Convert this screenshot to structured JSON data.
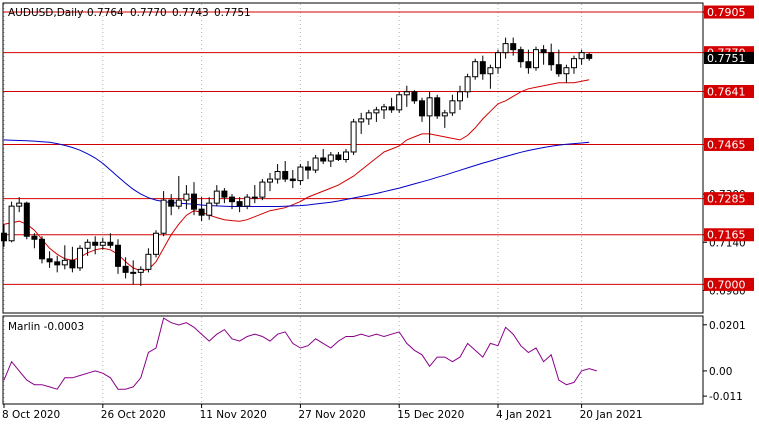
{
  "header": {
    "symbol_label": "AUDUSD,Daily",
    "ohlc": [
      "0.7764",
      "0.7770",
      "0.7743",
      "0.7751"
    ]
  },
  "current_price_label": "0.7751",
  "chart_data": [
    {
      "type": "candlestick",
      "symbol": "AUDUSD",
      "timeframe": "Daily",
      "ylim": [
        0.6905,
        0.7935
      ],
      "price_ticks": [
        "0.7905",
        "0.7770",
        "0.7641",
        "0.7465",
        "0.7300",
        "0.7285",
        "0.7165",
        "0.7140",
        "0.7000",
        "0.6980"
      ],
      "x_ticks": [
        "8 Oct 2020",
        "26 Oct 2020",
        "11 Nov 2020",
        "27 Nov 2020",
        "15 Dec 2020",
        "4 Jan 2021",
        "20 Jan 2021"
      ],
      "levels": [
        {
          "value": 0.7905,
          "label": "0.7905",
          "color": "#d40000"
        },
        {
          "value": 0.777,
          "label": "0.7770",
          "color": "#d40000"
        },
        {
          "value": 0.7641,
          "label": "0.7641",
          "color": "#d40000"
        },
        {
          "value": 0.7465,
          "label": "0.7465",
          "color": "#d40000"
        },
        {
          "value": 0.7285,
          "label": "0.7285",
          "color": "#d40000"
        },
        {
          "value": 0.7165,
          "label": "0.7165",
          "color": "#d40000"
        },
        {
          "value": 0.7,
          "label": "0.7000",
          "color": "#d40000"
        }
      ],
      "candles": [
        [
          0.717,
          0.72,
          0.7125,
          0.7145
        ],
        [
          0.7145,
          0.7275,
          0.714,
          0.726
        ],
        [
          0.726,
          0.729,
          0.724,
          0.727
        ],
        [
          0.727,
          0.7275,
          0.715,
          0.716
        ],
        [
          0.716,
          0.717,
          0.712,
          0.715
        ],
        [
          0.715,
          0.716,
          0.707,
          0.7085
        ],
        [
          0.7085,
          0.711,
          0.7055,
          0.7075
        ],
        [
          0.7075,
          0.7095,
          0.704,
          0.7065
        ],
        [
          0.7065,
          0.713,
          0.705,
          0.708
        ],
        [
          0.708,
          0.7125,
          0.704,
          0.7055
        ],
        [
          0.7055,
          0.713,
          0.7045,
          0.712
        ],
        [
          0.712,
          0.715,
          0.7095,
          0.714
        ],
        [
          0.714,
          0.716,
          0.71,
          0.713
        ],
        [
          0.713,
          0.7155,
          0.7115,
          0.714
        ],
        [
          0.714,
          0.717,
          0.712,
          0.713
        ],
        [
          0.713,
          0.715,
          0.7035,
          0.706
        ],
        [
          0.706,
          0.709,
          0.702,
          0.704
        ],
        [
          0.704,
          0.708,
          0.7,
          0.704
        ],
        [
          0.704,
          0.706,
          0.6995,
          0.705
        ],
        [
          0.705,
          0.712,
          0.704,
          0.71
        ],
        [
          0.71,
          0.718,
          0.709,
          0.717
        ],
        [
          0.717,
          0.731,
          0.716,
          0.728
        ],
        [
          0.728,
          0.73,
          0.723,
          0.726
        ],
        [
          0.726,
          0.736,
          0.725,
          0.728
        ],
        [
          0.728,
          0.733,
          0.725,
          0.73
        ],
        [
          0.73,
          0.734,
          0.723,
          0.725
        ],
        [
          0.725,
          0.729,
          0.721,
          0.723
        ],
        [
          0.723,
          0.729,
          0.7215,
          0.727
        ],
        [
          0.727,
          0.733,
          0.726,
          0.731
        ],
        [
          0.731,
          0.732,
          0.727,
          0.729
        ],
        [
          0.729,
          0.73,
          0.725,
          0.7275
        ],
        [
          0.7275,
          0.729,
          0.724,
          0.726
        ],
        [
          0.726,
          0.73,
          0.725,
          0.729
        ],
        [
          0.729,
          0.733,
          0.727,
          0.729
        ],
        [
          0.729,
          0.735,
          0.728,
          0.734
        ],
        [
          0.734,
          0.737,
          0.731,
          0.735
        ],
        [
          0.735,
          0.74,
          0.7335,
          0.7375
        ],
        [
          0.7375,
          0.741,
          0.734,
          0.735
        ],
        [
          0.735,
          0.738,
          0.732,
          0.7345
        ],
        [
          0.7345,
          0.74,
          0.733,
          0.739
        ],
        [
          0.739,
          0.741,
          0.735,
          0.738
        ],
        [
          0.738,
          0.743,
          0.737,
          0.742
        ],
        [
          0.742,
          0.745,
          0.74,
          0.741
        ],
        [
          0.741,
          0.744,
          0.739,
          0.743
        ],
        [
          0.743,
          0.744,
          0.741,
          0.7415
        ],
        [
          0.7415,
          0.745,
          0.7405,
          0.744
        ],
        [
          0.744,
          0.755,
          0.743,
          0.754
        ],
        [
          0.754,
          0.757,
          0.75,
          0.755
        ],
        [
          0.755,
          0.758,
          0.753,
          0.757
        ],
        [
          0.757,
          0.759,
          0.754,
          0.758
        ],
        [
          0.758,
          0.76,
          0.755,
          0.759
        ],
        [
          0.759,
          0.762,
          0.757,
          0.758
        ],
        [
          0.758,
          0.764,
          0.757,
          0.763
        ],
        [
          0.763,
          0.766,
          0.759,
          0.764
        ],
        [
          0.764,
          0.7645,
          0.76,
          0.761
        ],
        [
          0.761,
          0.762,
          0.754,
          0.756
        ],
        [
          0.756,
          0.764,
          0.747,
          0.762
        ],
        [
          0.762,
          0.763,
          0.755,
          0.756
        ],
        [
          0.756,
          0.758,
          0.752,
          0.757
        ],
        [
          0.757,
          0.763,
          0.756,
          0.761
        ],
        [
          0.761,
          0.766,
          0.758,
          0.764
        ],
        [
          0.764,
          0.77,
          0.762,
          0.769
        ],
        [
          0.769,
          0.775,
          0.768,
          0.774
        ],
        [
          0.774,
          0.776,
          0.768,
          0.77
        ],
        [
          0.77,
          0.773,
          0.765,
          0.772
        ],
        [
          0.772,
          0.778,
          0.77,
          0.777
        ],
        [
          0.777,
          0.782,
          0.775,
          0.78
        ],
        [
          0.78,
          0.782,
          0.776,
          0.778
        ],
        [
          0.778,
          0.779,
          0.772,
          0.774
        ],
        [
          0.774,
          0.778,
          0.77,
          0.772
        ],
        [
          0.772,
          0.779,
          0.771,
          0.778
        ],
        [
          0.778,
          0.7795,
          0.773,
          0.777
        ],
        [
          0.777,
          0.78,
          0.771,
          0.773
        ],
        [
          0.773,
          0.778,
          0.769,
          0.77
        ],
        [
          0.77,
          0.773,
          0.767,
          0.772
        ],
        [
          0.772,
          0.776,
          0.77,
          0.775
        ],
        [
          0.775,
          0.778,
          0.773,
          0.777
        ],
        [
          0.7764,
          0.777,
          0.7743,
          0.7751
        ]
      ],
      "series": [
        {
          "kind": "moving_average",
          "color": "#d40000",
          "values": [
            0.72,
            0.7205,
            0.721,
            0.72,
            0.718,
            0.715,
            0.712,
            0.71,
            0.7085,
            0.708,
            0.709,
            0.7105,
            0.7115,
            0.712,
            0.7115,
            0.71,
            0.7075,
            0.7055,
            0.7045,
            0.705,
            0.7075,
            0.712,
            0.7165,
            0.72,
            0.723,
            0.7245,
            0.724,
            0.723,
            0.7222,
            0.7215,
            0.7212,
            0.721,
            0.7215,
            0.7225,
            0.7235,
            0.7245,
            0.725,
            0.7255,
            0.7265,
            0.7275,
            0.729,
            0.73,
            0.731,
            0.732,
            0.733,
            0.7345,
            0.736,
            0.738,
            0.74,
            0.742,
            0.744,
            0.745,
            0.746,
            0.748,
            0.749,
            0.75,
            0.75,
            0.7495,
            0.749,
            0.7485,
            0.748,
            0.7495,
            0.752,
            0.755,
            0.7575,
            0.76,
            0.761,
            0.7625,
            0.764,
            0.765,
            0.7655,
            0.766,
            0.7665,
            0.767,
            0.767,
            0.767,
            0.7675,
            0.768
          ]
        },
        {
          "kind": "moving_average",
          "color": "#0000c8",
          "values": [
            0.748,
            0.7479,
            0.7478,
            0.7477,
            0.7476,
            0.7474,
            0.7472,
            0.7468,
            0.7462,
            0.7455,
            0.7446,
            0.7434,
            0.742,
            0.7402,
            0.738,
            0.7358,
            0.7336,
            0.7316,
            0.73,
            0.7288,
            0.728,
            0.7275,
            0.7272,
            0.727,
            0.7268,
            0.7266,
            0.7264,
            0.7262,
            0.7261,
            0.726,
            0.7259,
            0.7259,
            0.7259,
            0.7259,
            0.7259,
            0.7259,
            0.7259,
            0.726,
            0.7261,
            0.7262,
            0.7264,
            0.7267,
            0.727,
            0.7273,
            0.7277,
            0.7282,
            0.7287,
            0.7292,
            0.7297,
            0.7302,
            0.7308,
            0.7314,
            0.732,
            0.7327,
            0.7334,
            0.7341,
            0.7348,
            0.7356,
            0.7363,
            0.7371,
            0.7379,
            0.7387,
            0.7395,
            0.7403,
            0.741,
            0.7418,
            0.7425,
            0.7432,
            0.7439,
            0.7445,
            0.745,
            0.7455,
            0.7459,
            0.7463,
            0.7466,
            0.7468,
            0.747,
            0.7472
          ]
        }
      ]
    },
    {
      "type": "line",
      "title": "Marlin -0.0003",
      "ylim": [
        -0.014,
        0.0235
      ],
      "ticks": [
        "0.0201",
        "0.00",
        "-0.011"
      ],
      "series": [
        {
          "color": "#8b008b",
          "values": [
            -0.004,
            0.004,
            0.0,
            -0.004,
            -0.006,
            -0.006,
            -0.007,
            -0.008,
            -0.003,
            -0.003,
            -0.002,
            -0.001,
            0.0,
            -0.001,
            -0.003,
            -0.008,
            -0.008,
            -0.007,
            -0.003,
            0.008,
            0.01,
            0.023,
            0.021,
            0.02,
            0.021,
            0.019,
            0.016,
            0.013,
            0.016,
            0.018,
            0.014,
            0.013,
            0.015,
            0.016,
            0.015,
            0.013,
            0.016,
            0.017,
            0.012,
            0.01,
            0.011,
            0.014,
            0.012,
            0.01,
            0.013,
            0.015,
            0.015,
            0.016,
            0.015,
            0.016,
            0.015,
            0.016,
            0.017,
            0.012,
            0.009,
            0.007,
            0.002,
            0.006,
            0.006,
            0.004,
            0.006,
            0.012,
            0.009,
            0.006,
            0.012,
            0.011,
            0.019,
            0.016,
            0.011,
            0.008,
            0.01,
            0.004,
            0.007,
            -0.004,
            -0.006,
            -0.005,
            0.0,
            0.001,
            0.0
          ]
        }
      ]
    }
  ]
}
